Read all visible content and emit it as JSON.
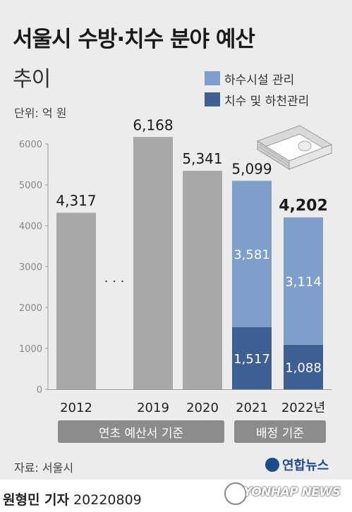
{
  "header": {
    "title": "서울시 수방·치수 분야 예산",
    "subtitle": "추이",
    "unit": "단위: 억 원"
  },
  "legend": [
    {
      "label": "하수시설 관리",
      "color": "#7f9fcb"
    },
    {
      "label": "치수 및 하천관리",
      "color": "#3d5f91"
    }
  ],
  "chart_data": {
    "type": "bar",
    "categories": [
      "2012",
      "2019",
      "2020",
      "2021",
      "2022년"
    ],
    "ylim": [
      0,
      6000
    ],
    "yticks": [
      0,
      1000,
      2000,
      3000,
      4000,
      5000,
      6000
    ],
    "totals": [
      "4,317",
      "6,168",
      "5,341",
      "5,099",
      "4,202"
    ],
    "total_values": [
      4317,
      6168,
      5341,
      5099,
      4202
    ],
    "series": [
      {
        "name": "하수시설 관리",
        "values": [
          null,
          null,
          null,
          3581,
          3114
        ],
        "labels": [
          "",
          "",
          "",
          "3,581",
          "3,114"
        ]
      },
      {
        "name": "치수 및 하천관리",
        "values": [
          null,
          null,
          null,
          1517,
          1088
        ],
        "labels": [
          "",
          "",
          "",
          "1,517",
          "1,088"
        ]
      }
    ],
    "gap_marker": "· · ·",
    "grid": false
  },
  "colors": {
    "gray_bar": "#a8a8a8",
    "light_blue": "#7f9fcb",
    "dark_blue": "#3d5f91",
    "axis": "#9a9a9a"
  },
  "banners": {
    "left": "연초 예산서 기준",
    "right": "배정 기준"
  },
  "footer": {
    "source": "자료: 서울시",
    "agency_logo": "연합뉴스",
    "credit_name": "원형민 기자",
    "credit_date": "20220809",
    "watermark": "YONHAP NEWS"
  }
}
